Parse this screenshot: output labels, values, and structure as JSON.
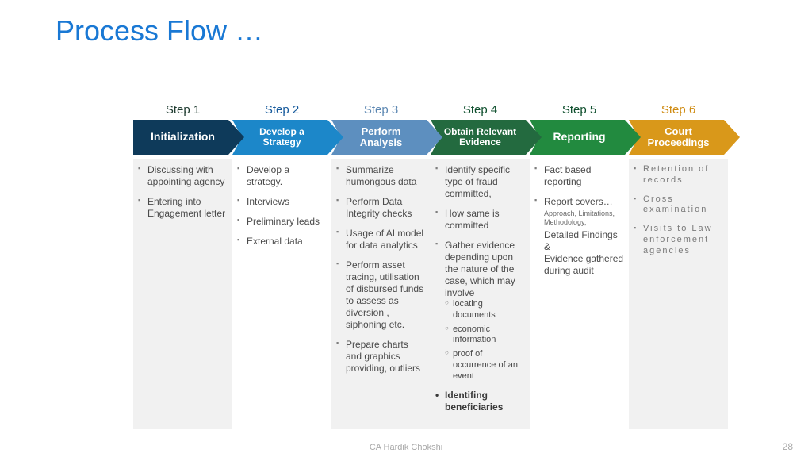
{
  "title": "Process Flow …",
  "title_color": "#1978d4",
  "steps": [
    {
      "label": "Step 1",
      "label_color": "#1d3a2e",
      "arrow_text": "Initialization",
      "arrow_fill": "#0e3a5a",
      "arrow_font": 14
    },
    {
      "label": "Step 2",
      "label_color": "#165a9c",
      "arrow_text": "Develop a Strategy",
      "arrow_fill": "#1c87c9",
      "arrow_font": 12
    },
    {
      "label": "Step 3",
      "label_color": "#5c87b2",
      "arrow_text": "Perform Analysis",
      "arrow_fill": "#5d8fbf",
      "arrow_font": 13
    },
    {
      "label": "Step 4",
      "label_color": "#0e4f2d",
      "arrow_text": "Obtain Relevant Evidence",
      "arrow_fill": "#236a3f",
      "arrow_font": 12
    },
    {
      "label": "Step 5",
      "label_color": "#0e4f2d",
      "arrow_text": "Reporting",
      "arrow_fill": "#228a3f",
      "arrow_font": 14
    },
    {
      "label": "Step 6",
      "label_color": "#cf8b12",
      "arrow_text": "Court Proceedings",
      "arrow_fill": "#d9981a",
      "arrow_font": 13
    }
  ],
  "columns": [
    {
      "shaded": true,
      "items": [
        {
          "text": "Discussing with appointing agency"
        },
        {
          "text": "Entering into Engagement letter"
        }
      ]
    },
    {
      "shaded": false,
      "items": [
        {
          "text": "Develop a strategy."
        },
        {
          "text": "Interviews"
        },
        {
          "text": "Preliminary leads"
        },
        {
          "text": "External data"
        }
      ]
    },
    {
      "shaded": true,
      "items": [
        {
          "text": "Summarize humongous data"
        },
        {
          "text": "Perform Data Integrity checks"
        },
        {
          "text": "Usage of AI model for data analytics"
        },
        {
          "text": "Perform asset tracing, utilisation of disbursed funds to assess as diversion , siphoning etc."
        },
        {
          "text": "Prepare charts and graphics providing, outliers"
        }
      ]
    },
    {
      "shaded": true,
      "items": [
        {
          "text": "Identify specific type of fraud committed,"
        },
        {
          "text": "How same is committed"
        },
        {
          "text": "Gather evidence depending upon the nature of the case, which may involve",
          "subitems": [
            "locating documents",
            "economic information",
            "proof of occurrence of an event"
          ]
        },
        {
          "text": "Identifing beneficiaries",
          "strong": true
        }
      ]
    },
    {
      "shaded": false,
      "items": [
        {
          "text": "Fact based reporting"
        },
        {
          "text": "Report covers…",
          "note": "Approach, Limitations, Methodology,",
          "after": "Detailed Findings &\nEvidence gathered during audit"
        }
      ]
    },
    {
      "shaded": true,
      "class": "col6",
      "items": [
        {
          "text": "Retention of records"
        },
        {
          "text": "Cross examination"
        },
        {
          "text": "Visits to Law enforcement agencies"
        }
      ]
    }
  ],
  "footer_author": "CA Hardik Chokshi",
  "page_number": "28"
}
